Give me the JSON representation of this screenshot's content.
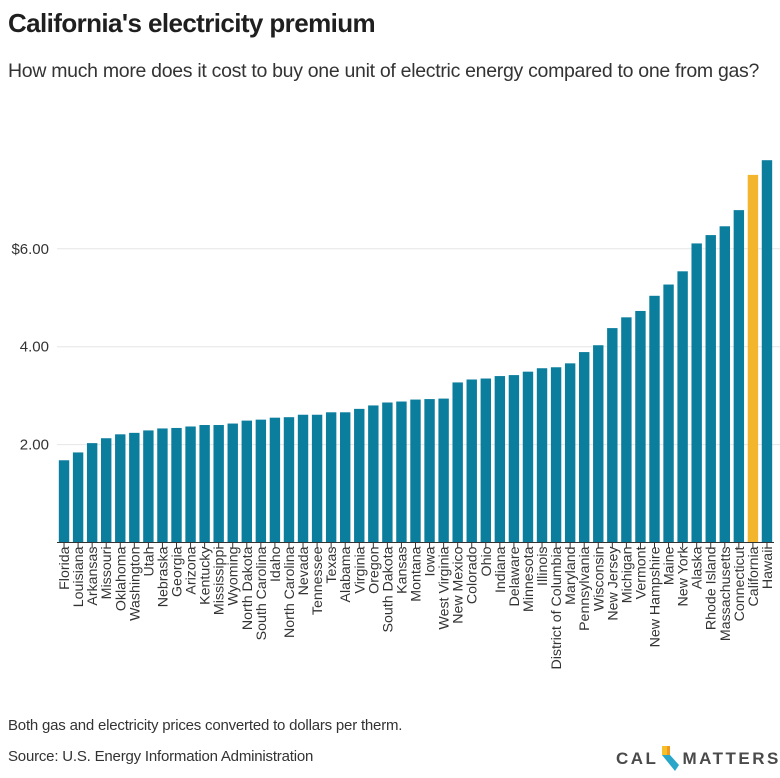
{
  "header": {
    "title": "California's electricity premium",
    "subtitle": "How much more does it cost to buy one unit of electric energy compared to one from gas?"
  },
  "footer": {
    "note": "Both gas and electricity prices converted to dollars per therm.",
    "source": "Source: U.S. Energy Information Administration",
    "logo_left": "CAL",
    "logo_right": "MATTERS",
    "logo_icon": "california-state-icon"
  },
  "colors": {
    "bar": "#0b7e9e",
    "highlight": "#f2b52d",
    "logo_yellow": "#f6c02b",
    "logo_orange": "#f29a1f",
    "logo_blue": "#2aa6c9"
  },
  "chart_data": {
    "type": "bar",
    "title": "California's electricity premium",
    "subtitle": "How much more does it cost to buy one unit of electric energy compared to one from gas?",
    "xlabel": "",
    "ylabel": "",
    "ylim": [
      0,
      8
    ],
    "yticks": [
      2,
      4,
      6
    ],
    "ytick_labels": [
      "2.00",
      "4.00",
      "$6.00"
    ],
    "grid": true,
    "legend": "none",
    "highlight_category": "California",
    "categories": [
      "Florida",
      "Louisiana",
      "Arkansas",
      "Missouri",
      "Oklahoma",
      "Washington",
      "Utah",
      "Nebraska",
      "Georgia",
      "Arizona",
      "Kentucky",
      "Mississippi",
      "Wyoming",
      "North Dakota",
      "South Carolina",
      "Idaho",
      "North Carolina",
      "Nevada",
      "Tennessee",
      "Texas",
      "Alabama",
      "Virginia",
      "Oregon",
      "South Dakota",
      "Kansas",
      "Montana",
      "Iowa",
      "West Virginia",
      "New Mexico",
      "Colorado",
      "Ohio",
      "Indiana",
      "Delaware",
      "Minnesota",
      "Illinois",
      "District of Columbia",
      "Maryland",
      "Pennsylvania",
      "Wisconsin",
      "New Jersey",
      "Michigan",
      "Vermont",
      "New Hampshire",
      "Maine",
      "New York",
      "Alaska",
      "Rhode Island",
      "Massachusetts",
      "Connecticut",
      "California",
      "Hawaii"
    ],
    "values": [
      1.68,
      1.84,
      2.03,
      2.13,
      2.21,
      2.24,
      2.29,
      2.33,
      2.34,
      2.37,
      2.4,
      2.4,
      2.43,
      2.49,
      2.51,
      2.55,
      2.56,
      2.61,
      2.61,
      2.66,
      2.66,
      2.73,
      2.8,
      2.86,
      2.88,
      2.92,
      2.93,
      2.94,
      3.27,
      3.33,
      3.35,
      3.4,
      3.42,
      3.49,
      3.56,
      3.58,
      3.66,
      3.89,
      4.03,
      4.38,
      4.6,
      4.73,
      5.04,
      5.27,
      5.54,
      6.11,
      6.28,
      6.46,
      6.79,
      7.51,
      7.81
    ]
  }
}
